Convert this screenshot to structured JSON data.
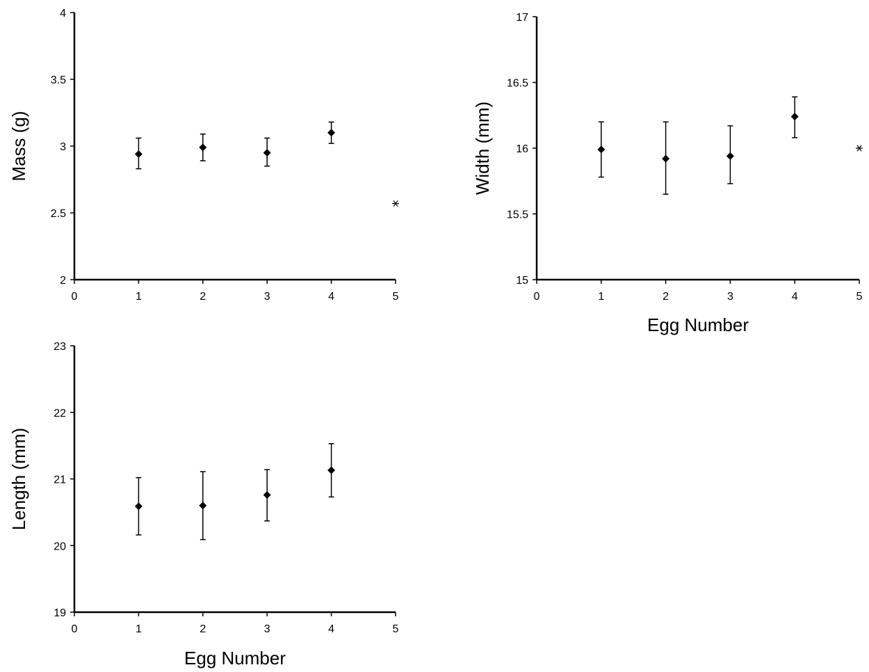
{
  "chart_data": [
    {
      "id": "mass",
      "type": "scatter",
      "title": "",
      "xlabel": "",
      "ylabel": "Mass (g)",
      "xlim": [
        0,
        5
      ],
      "ylim": [
        2,
        4
      ],
      "xticks": [
        "0",
        "1",
        "2",
        "3",
        "4",
        "5"
      ],
      "yticks": [
        "2",
        "2.5",
        "3",
        "3.5",
        "4"
      ],
      "grid": false,
      "series": [
        {
          "x": [
            1,
            2,
            3,
            4
          ],
          "y": [
            2.94,
            2.99,
            2.95,
            3.1
          ],
          "yerr_low": [
            2.83,
            2.89,
            2.85,
            3.02
          ],
          "yerr_high": [
            3.06,
            3.09,
            3.06,
            3.18
          ]
        }
      ],
      "annotations": [
        {
          "x": 5,
          "y": 2.57,
          "text": "*"
        }
      ]
    },
    {
      "id": "width",
      "type": "scatter",
      "title": "",
      "xlabel": "Egg Number",
      "ylabel": "Width (mm)",
      "xlim": [
        0,
        5
      ],
      "ylim": [
        15,
        17
      ],
      "xticks": [
        "0",
        "1",
        "2",
        "3",
        "4",
        "5"
      ],
      "yticks": [
        "15",
        "15.5",
        "16",
        "16.5",
        "17"
      ],
      "grid": false,
      "series": [
        {
          "x": [
            1,
            2,
            3,
            4
          ],
          "y": [
            15.99,
            15.92,
            15.94,
            16.24
          ],
          "yerr_low": [
            15.78,
            15.65,
            15.73,
            16.08
          ],
          "yerr_high": [
            16.2,
            16.2,
            16.17,
            16.39
          ]
        }
      ],
      "annotations": [
        {
          "x": 5,
          "y": 16.0,
          "text": "*"
        }
      ]
    },
    {
      "id": "length",
      "type": "scatter",
      "title": "",
      "xlabel": "Egg Number",
      "ylabel": "Length (mm)",
      "xlim": [
        0,
        5
      ],
      "ylim": [
        19,
        23
      ],
      "xticks": [
        "0",
        "1",
        "2",
        "3",
        "4",
        "5"
      ],
      "yticks": [
        "19",
        "20",
        "21",
        "22",
        "23"
      ],
      "grid": false,
      "series": [
        {
          "x": [
            1,
            2,
            3,
            4
          ],
          "y": [
            20.59,
            20.6,
            20.76,
            21.13
          ],
          "yerr_low": [
            20.16,
            20.09,
            20.37,
            20.73
          ],
          "yerr_high": [
            21.02,
            21.11,
            21.14,
            21.53
          ]
        }
      ],
      "annotations": []
    }
  ]
}
